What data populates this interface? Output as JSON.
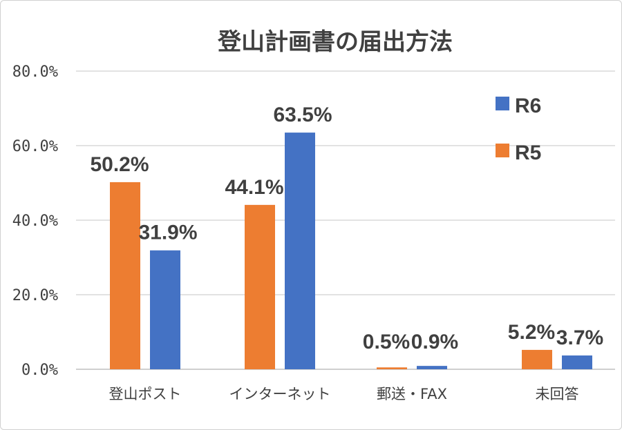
{
  "chart_data": {
    "type": "bar",
    "title": "登山計画書の届出方法",
    "categories": [
      "登山ポスト",
      "インターネット",
      "郵送・FAX",
      "未回答"
    ],
    "series": [
      {
        "name": "R5",
        "color": "#ED7D31",
        "values": [
          50.2,
          44.1,
          0.5,
          5.2
        ],
        "labels": [
          "50.2%",
          "44.1%",
          "0.5%",
          "5.2%"
        ]
      },
      {
        "name": "R6",
        "color": "#4472C4",
        "values": [
          31.9,
          63.5,
          0.9,
          3.7
        ],
        "labels": [
          "31.9%",
          "63.5%",
          "0.9%",
          "3.7%"
        ]
      }
    ],
    "yticks": [
      "0.0%",
      "20.0%",
      "40.0%",
      "60.0%",
      "80.0%"
    ],
    "ylim": [
      0,
      80
    ],
    "grid": true,
    "legend": {
      "position": "right",
      "order": [
        "R6",
        "R5"
      ]
    }
  }
}
